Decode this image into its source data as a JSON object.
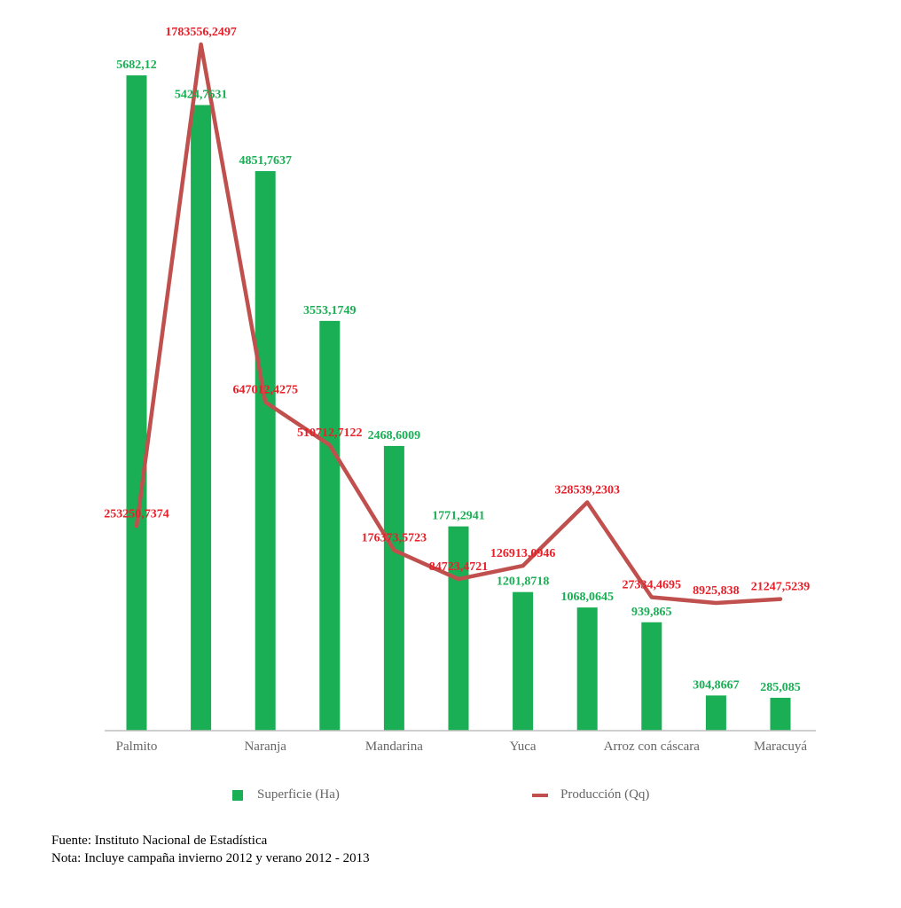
{
  "colors": {
    "bar": "#1aaf54",
    "bar_label": "#1aaf54",
    "line": "#c0504d",
    "line_label": "#e8202a",
    "axis": "#bfbfbf"
  },
  "chart_data": {
    "type": "bar",
    "categories": [
      "Palmito",
      "",
      "Naranja",
      "",
      "Mandarina",
      "",
      "Yuca",
      "",
      "Arroz con cáscara",
      "",
      "Maracuyá"
    ],
    "bars": {
      "name": "Superficie (Ha)",
      "values": [
        5682.12,
        5424.7631,
        4851.7637,
        3553.1749,
        2468.6009,
        1771.2941,
        1201.8718,
        1068.0645,
        939.865,
        304.8667,
        285.085
      ],
      "labels": [
        "5682,12",
        "5424,7631",
        "4851,7637",
        "3553,1749",
        "2468,6009",
        "1771,2941",
        "1201,8718",
        "1068,0645",
        "939,865",
        "304,8667",
        "285,085"
      ]
    },
    "line": {
      "name": "Producción (Qq)",
      "values": [
        253250.7374,
        1783556.2497,
        647012.4275,
        510712.7122,
        176373.5723,
        84723.4721,
        126913.0946,
        328539.2303,
        27334.4695,
        8925.838,
        21247.5239
      ],
      "labels": [
        "253250,7374",
        "1783556,2497",
        "647012,4275",
        "510712,7122",
        "176373,5723",
        "84723,4721",
        "126913,0946",
        "328539,2303",
        "27334,4695",
        "8925,838",
        "21247,5239"
      ]
    },
    "legend": [
      "Superficie (Ha)",
      "Producción (Qq)"
    ],
    "legend_position": "bottom",
    "grid": false
  },
  "notes": {
    "source": "Fuente: Instituto Nacional de Estadística",
    "note": "Nota: Incluye campaña invierno 2012 y verano 2012 - 2013"
  }
}
